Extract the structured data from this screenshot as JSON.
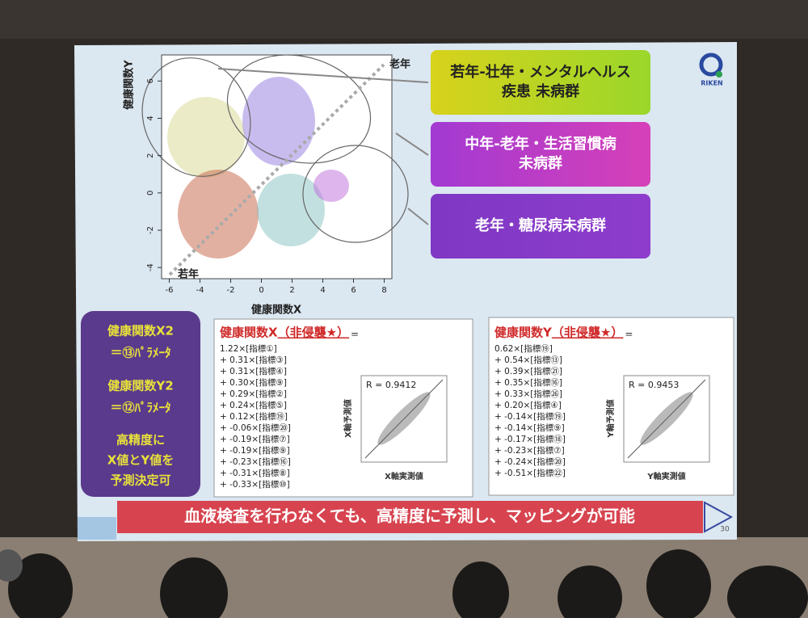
{
  "scatter": {
    "xlabel": "健康関数X",
    "ylabel": "健康関数Y",
    "xlim": [
      -6.5,
      8.5
    ],
    "ylim": [
      -4.6,
      7.4
    ],
    "xticks": [
      -6,
      -4,
      -2,
      0,
      2,
      4,
      6,
      8
    ],
    "yticks": [
      -4,
      -2,
      0,
      2,
      4,
      6
    ],
    "label_old": "老年",
    "label_young": "若年"
  },
  "groups": [
    {
      "lines": [
        "若年-壮年・メンタルヘルス",
        "疾患 未病群"
      ]
    },
    {
      "lines": [
        "中年-老年・生活習慣病",
        "未病群"
      ]
    },
    {
      "lines": [
        "老年・糖尿病未病群"
      ]
    }
  ],
  "logo": "RIKEN",
  "summary": [
    "健康関数X2",
    "＝⑬ﾊﾟﾗﾒｰﾀ",
    "健康関数Y2",
    "＝⑫ﾊﾟﾗﾒｰﾀ",
    "高精度に",
    "X値とY値を",
    "予測決定可"
  ],
  "panels": [
    {
      "title": "健康関数X",
      "title_note": "（非侵襲★）",
      "equals": "=",
      "terms": [
        "1.22×[指標①]",
        "+ 0.31×[指標③]",
        "+ 0.31×[指標④]",
        "+ 0.30×[指標⑨]",
        "+ 0.29×[指標②]",
        "+ 0.24×[指標⑤]",
        "+ 0.12×[指標⑲]",
        "+ -0.06×[指標⑳]",
        "+ -0.19×[指標⑦]",
        "+ -0.19×[指標⑨]",
        "+ -0.23×[指標⑯]",
        "+ -0.31×[指標⑧]",
        "+ -0.33×[指標⑩]"
      ],
      "r": "R = 0.9412",
      "xlabel": "X軸実測値",
      "ylabel": "X軸予測値"
    },
    {
      "title": "健康関数Y",
      "title_note": "（非侵襲★）",
      "equals": "=",
      "terms": [
        "0.62×[指標⑲]",
        "+ 0.54×[指標⑬]",
        "+ 0.39×[指標㉑]",
        "+ 0.35×[指標⑯]",
        "+ 0.33×[指標㉖]",
        "+ 0.20×[指標④]",
        "+ -0.14×[指標⑲]",
        "+ -0.14×[指標⑨]",
        "+ -0.17×[指標⑱]",
        "+ -0.23×[指標⑦]",
        "+ -0.24×[指標⑳]",
        "+ -0.51×[指標㉒]"
      ],
      "r": "R = 0.9453",
      "xlabel": "Y軸実測値",
      "ylabel": "Y軸予測値"
    }
  ],
  "footer": "血液検査を行わなくても、高精度に予測し、マッピングが可能",
  "page_number": "30"
}
